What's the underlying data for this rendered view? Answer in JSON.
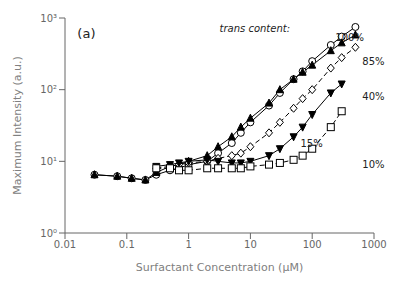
{
  "chart_data": {
    "type": "line",
    "xlabel": "Surfactant Concentration (μM)",
    "ylabel": "Maximum Intensity (a.u.)",
    "panel_label": "(a)",
    "annotation": "trans content:",
    "log": true,
    "grid": false,
    "xlim": [
      0.01,
      1000
    ],
    "ylim": [
      1,
      1000
    ],
    "xticks": [
      0.01,
      0.1,
      1,
      10,
      100,
      1000
    ],
    "yticks": [
      {
        "value": 1,
        "label": "10⁰"
      },
      {
        "value": 10,
        "label": "10¹"
      },
      {
        "value": 100,
        "label": "10²"
      },
      {
        "value": 1000,
        "label": "10³"
      }
    ],
    "series": [
      {
        "name": "100%",
        "color": "black",
        "marker": "circle-open",
        "line_style": "solid",
        "x": [
          0.03,
          0.07,
          0.12,
          0.2,
          0.3,
          0.5,
          0.7,
          1.0,
          2.0,
          3.0,
          5.0,
          7.0,
          10.0,
          20.0,
          30.0,
          50.0,
          70.0,
          100.0,
          200.0,
          300.0,
          500.0
        ],
        "values": [
          6.5,
          6.2,
          5.8,
          5.5,
          6.5,
          7.5,
          8.0,
          9.0,
          10.0,
          13.0,
          18.0,
          25.0,
          35.0,
          60.0,
          90.0,
          140.0,
          180.0,
          250.0,
          420.0,
          550.0,
          750.0
        ]
      },
      {
        "name": "85%",
        "color": "black",
        "marker": "triangle-up",
        "line_style": "solid",
        "x": [
          0.03,
          0.07,
          0.12,
          0.2,
          0.3,
          0.5,
          0.7,
          1.0,
          2.0,
          3.0,
          5.0,
          7.0,
          10.0,
          20.0,
          30.0,
          50.0,
          70.0,
          100.0,
          200.0,
          300.0,
          500.0
        ],
        "values": [
          6.5,
          6.2,
          5.8,
          5.5,
          7.0,
          8.5,
          9.0,
          10.0,
          12.0,
          16.0,
          22.0,
          30.0,
          40.0,
          65.0,
          100.0,
          140.0,
          175.0,
          220.0,
          350.0,
          450.0,
          580.0
        ]
      },
      {
        "name": "40%",
        "color": "black",
        "marker": "diamond-open",
        "line_style": "dashed",
        "x": [
          0.3,
          0.5,
          0.7,
          1.0,
          2.0,
          3.0,
          5.0,
          7.0,
          10.0,
          20.0,
          30.0,
          50.0,
          70.0,
          100.0,
          200.0,
          300.0,
          500.0
        ],
        "values": [
          8.0,
          8.5,
          9.0,
          9.5,
          10.0,
          11.0,
          12.0,
          13.0,
          16.0,
          25.0,
          35.0,
          55.0,
          75.0,
          100.0,
          200.0,
          280.0,
          390.0
        ]
      },
      {
        "name": "15%",
        "color": "black",
        "marker": "triangle-down",
        "line_style": "solid",
        "x": [
          0.3,
          0.5,
          0.7,
          1.0,
          2.0,
          3.0,
          5.0,
          7.0,
          10.0,
          20.0,
          30.0,
          50.0,
          70.0,
          100.0,
          200.0,
          300.0
        ],
        "values": [
          8.5,
          9.0,
          9.5,
          10.0,
          10.5,
          10.0,
          9.5,
          9.5,
          10.0,
          12.0,
          15.0,
          22.0,
          30.0,
          45.0,
          90.0,
          120.0
        ]
      },
      {
        "name": "10%",
        "color": "black",
        "marker": "square-open",
        "line_style": "dashed",
        "x": [
          0.3,
          0.5,
          0.7,
          1.0,
          2.0,
          3.0,
          5.0,
          7.0,
          10.0,
          20.0,
          30.0,
          50.0,
          70.0,
          100.0,
          200.0,
          300.0
        ],
        "values": [
          8.0,
          8.0,
          7.5,
          7.5,
          8.0,
          8.0,
          8.0,
          8.0,
          8.5,
          9.0,
          9.5,
          10.5,
          12.0,
          15.0,
          30.0,
          50.0
        ]
      }
    ],
    "curve_labels": [
      {
        "text": "100%",
        "x": 220,
        "y": 530
      },
      {
        "text": "85%",
        "x": 600,
        "y": 250
      },
      {
        "text": "40%",
        "x": 600,
        "y": 80
      },
      {
        "text": "15%",
        "x": 60,
        "y": 18
      },
      {
        "text": "10%",
        "x": 600,
        "y": 9.0
      }
    ]
  }
}
